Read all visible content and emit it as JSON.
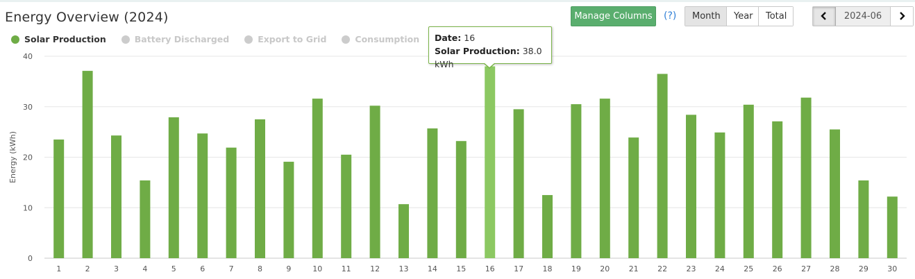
{
  "header": {
    "title": "Energy Overview (2024)",
    "manage_columns_label": "Manage Columns",
    "help_label": "(?)"
  },
  "period_tabs": [
    {
      "label": "Month",
      "active": true
    },
    {
      "label": "Year",
      "active": false
    },
    {
      "label": "Total",
      "active": false
    }
  ],
  "date_nav": {
    "prev_icon": "chevron-left-icon",
    "next_icon": "chevron-right-icon",
    "value": "2024-06"
  },
  "legend": [
    {
      "label": "Solar Production",
      "active": true,
      "color": "#6fac46"
    },
    {
      "label": "Battery Discharged",
      "active": false,
      "color": "#cccccc"
    },
    {
      "label": "Export to Grid",
      "active": false,
      "color": "#cccccc"
    },
    {
      "label": "Consumption",
      "active": false,
      "color": "#cccccc"
    }
  ],
  "tooltip": {
    "date_label": "Date:",
    "date_value": "16",
    "series_label": "Solar Production:",
    "series_value": "38.0 kWh"
  },
  "colors": {
    "bar": "#6fac46",
    "bar_highlight": "#8cc862",
    "grid": "#e6e6e6",
    "button_green": "#5aae6e",
    "link_blue": "#2f7fd6"
  },
  "chart_data": {
    "type": "bar",
    "ylabel": "Energy (kWh)",
    "ylim": [
      0,
      40
    ],
    "yticks": [
      0,
      10,
      20,
      30,
      40
    ],
    "categories": [
      "1",
      "2",
      "3",
      "4",
      "5",
      "6",
      "7",
      "8",
      "9",
      "10",
      "11",
      "12",
      "13",
      "14",
      "15",
      "16",
      "17",
      "18",
      "19",
      "20",
      "21",
      "22",
      "23",
      "24",
      "25",
      "26",
      "27",
      "28",
      "29",
      "30"
    ],
    "series": [
      {
        "name": "Solar Production",
        "values": [
          23.5,
          37.1,
          24.3,
          15.4,
          27.9,
          24.7,
          21.9,
          27.5,
          19.1,
          31.6,
          20.5,
          30.2,
          10.7,
          25.7,
          23.2,
          38.0,
          29.5,
          12.5,
          30.5,
          31.6,
          23.9,
          36.5,
          28.4,
          24.9,
          30.4,
          27.1,
          31.8,
          25.5,
          15.4,
          12.2
        ]
      }
    ],
    "highlighted_category": "16",
    "grid": true
  }
}
